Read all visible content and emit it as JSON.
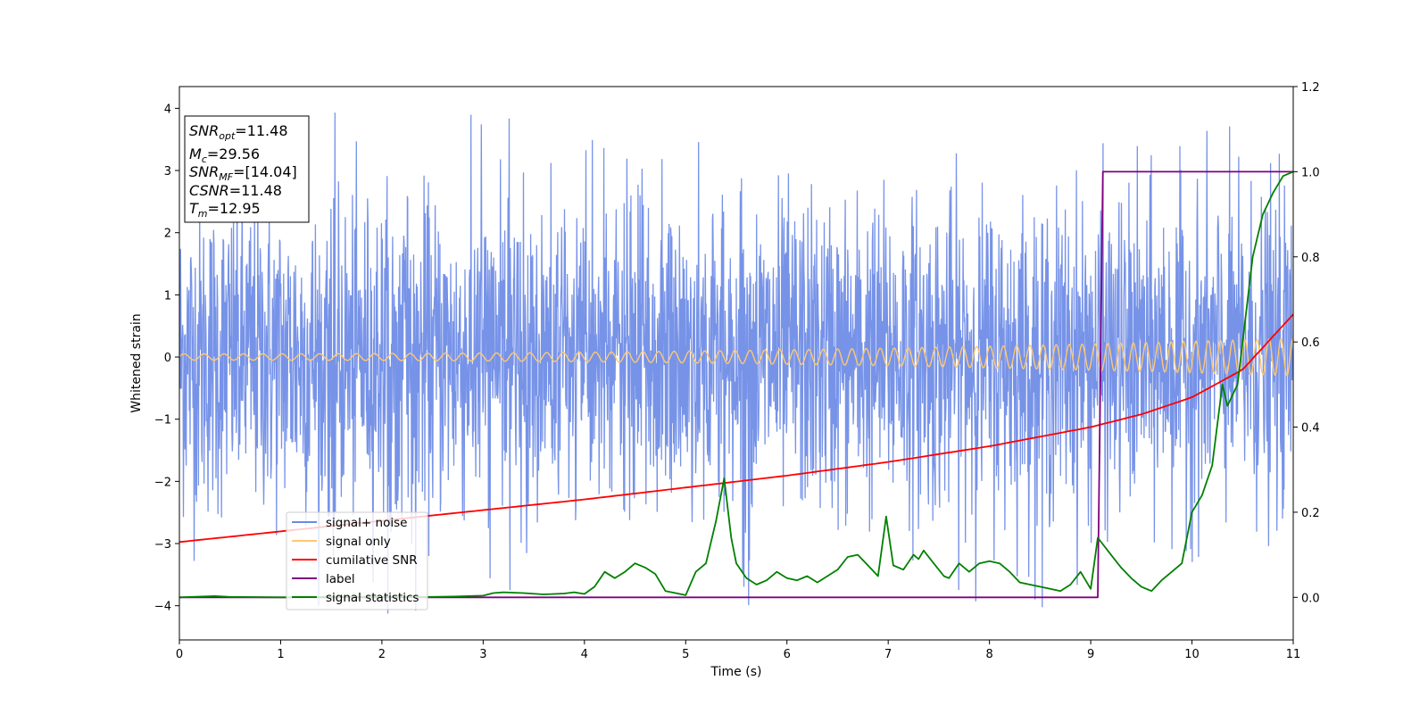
{
  "chart_data": {
    "type": "line",
    "xlabel": "Time (s)",
    "ylabel": "Whitened strain",
    "xlim": [
      0,
      11
    ],
    "ylim": [
      -4.55,
      4.35
    ],
    "y2lim": [
      -0.1,
      1.2
    ],
    "xticks": [
      "0",
      "1",
      "2",
      "3",
      "4",
      "5",
      "6",
      "7",
      "8",
      "9",
      "10",
      "11"
    ],
    "yticks": [
      "−4",
      "−3",
      "−2",
      "−1",
      "0",
      "1",
      "2",
      "3",
      "4"
    ],
    "y2ticks": [
      "0.0",
      "0.2",
      "0.4",
      "0.6",
      "0.8",
      "1.0",
      "1.2"
    ],
    "annotation": {
      "lines": [
        {
          "label": "SNR",
          "sub": "opt",
          "value": "=11.48"
        },
        {
          "label": "M",
          "sub": "c",
          "value": "=29.56"
        },
        {
          "label": "SNR",
          "sub": "MF",
          "value": "=[14.04]"
        },
        {
          "label": "CSNR",
          "sub": "",
          "value": "=11.48"
        },
        {
          "label": "T",
          "sub": "m",
          "value": "=12.95"
        }
      ]
    },
    "legend": {
      "position": "lower-left",
      "entries": [
        {
          "label": "signal+ noise",
          "color": "#6b8ae6"
        },
        {
          "label": "signal only",
          "color": "#ffc870"
        },
        {
          "label": "cumilative SNR",
          "color": "#ff0000"
        },
        {
          "label": "label",
          "color": "#800080"
        },
        {
          "label": "signal statistics",
          "color": "#008000"
        }
      ]
    },
    "series": [
      {
        "name": "signal+ noise",
        "axis": "left",
        "color": "#6b8ae6",
        "description": "white noise, amplitude ~±4",
        "amplitude_range": [
          -4.15,
          3.95
        ]
      },
      {
        "name": "signal only",
        "axis": "left",
        "color": "#ffc870",
        "description": "chirp oscillation, amplitude growing from 0.05 to 0.3",
        "amplitude_start": 0.05,
        "amplitude_end": 0.3
      },
      {
        "name": "cumilative SNR",
        "axis": "right",
        "color": "#ff0000",
        "x": [
          0,
          1,
          2,
          3,
          4,
          5,
          6,
          7,
          8,
          9,
          9.5,
          10,
          10.5,
          11
        ],
        "y": [
          0.13,
          0.155,
          0.18,
          0.205,
          0.23,
          0.258,
          0.286,
          0.318,
          0.355,
          0.4,
          0.43,
          0.47,
          0.535,
          0.665
        ]
      },
      {
        "name": "label",
        "axis": "right",
        "color": "#800080",
        "x": [
          0,
          9.07,
          9.12,
          11
        ],
        "y": [
          0.0,
          0.0,
          1.0,
          1.0
        ]
      },
      {
        "name": "signal statistics",
        "axis": "right",
        "color": "#008000",
        "x": [
          0,
          0.35,
          0.5,
          1,
          1.5,
          2,
          2.5,
          2.7,
          3,
          3.1,
          3.2,
          3.4,
          3.6,
          3.8,
          3.9,
          4.0,
          4.1,
          4.2,
          4.3,
          4.4,
          4.5,
          4.6,
          4.7,
          4.8,
          4.9,
          5.0,
          5.1,
          5.2,
          5.3,
          5.38,
          5.45,
          5.5,
          5.6,
          5.7,
          5.8,
          5.9,
          6.0,
          6.1,
          6.2,
          6.3,
          6.4,
          6.5,
          6.6,
          6.7,
          6.8,
          6.9,
          6.98,
          7.05,
          7.15,
          7.25,
          7.3,
          7.35,
          7.45,
          7.55,
          7.6,
          7.7,
          7.8,
          7.9,
          8.0,
          8.1,
          8.2,
          8.3,
          8.4,
          8.5,
          8.6,
          8.7,
          8.8,
          8.9,
          9.0,
          9.07,
          9.2,
          9.3,
          9.4,
          9.5,
          9.6,
          9.7,
          9.8,
          9.9,
          10.0,
          10.1,
          10.2,
          10.3,
          10.35,
          10.45,
          10.5,
          10.6,
          10.7,
          10.8,
          10.9,
          11.0
        ],
        "y": [
          0.0,
          0.003,
          0.001,
          0.0,
          0.001,
          0.001,
          0.001,
          0.002,
          0.004,
          0.01,
          0.012,
          0.01,
          0.007,
          0.009,
          0.012,
          0.008,
          0.025,
          0.06,
          0.045,
          0.06,
          0.08,
          0.07,
          0.055,
          0.015,
          0.01,
          0.005,
          0.06,
          0.08,
          0.18,
          0.28,
          0.14,
          0.08,
          0.045,
          0.03,
          0.04,
          0.06,
          0.045,
          0.04,
          0.05,
          0.035,
          0.05,
          0.065,
          0.095,
          0.1,
          0.075,
          0.05,
          0.19,
          0.075,
          0.065,
          0.1,
          0.09,
          0.11,
          0.08,
          0.05,
          0.045,
          0.08,
          0.06,
          0.08,
          0.085,
          0.08,
          0.06,
          0.035,
          0.03,
          0.025,
          0.02,
          0.015,
          0.03,
          0.06,
          0.02,
          0.14,
          0.1,
          0.07,
          0.045,
          0.025,
          0.015,
          0.04,
          0.06,
          0.08,
          0.2,
          0.24,
          0.31,
          0.5,
          0.45,
          0.5,
          0.6,
          0.8,
          0.9,
          0.95,
          0.99,
          1.0
        ]
      }
    ]
  }
}
